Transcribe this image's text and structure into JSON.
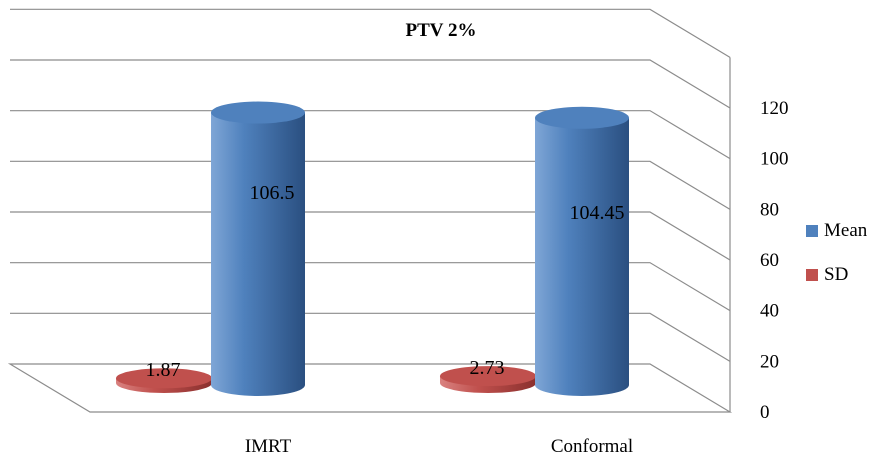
{
  "chart_data": {
    "type": "bar",
    "title": "PTV 2%",
    "categories": [
      "IMRT",
      "Conformal"
    ],
    "series": [
      {
        "name": "Mean",
        "values": [
          106.5,
          104.45
        ],
        "color": "#4F81BD"
      },
      {
        "name": "SD",
        "values": [
          1.87,
          2.73
        ],
        "color": "#C0504D"
      }
    ],
    "data_labels": [
      "106.5",
      "1.87",
      "104.45",
      "2.73"
    ],
    "ylim": [
      0,
      120
    ],
    "yticks": [
      0,
      20,
      40,
      60,
      80,
      100,
      120
    ],
    "grid": true,
    "legend": "right",
    "bar_shape": "cylinder",
    "style": "3d"
  }
}
